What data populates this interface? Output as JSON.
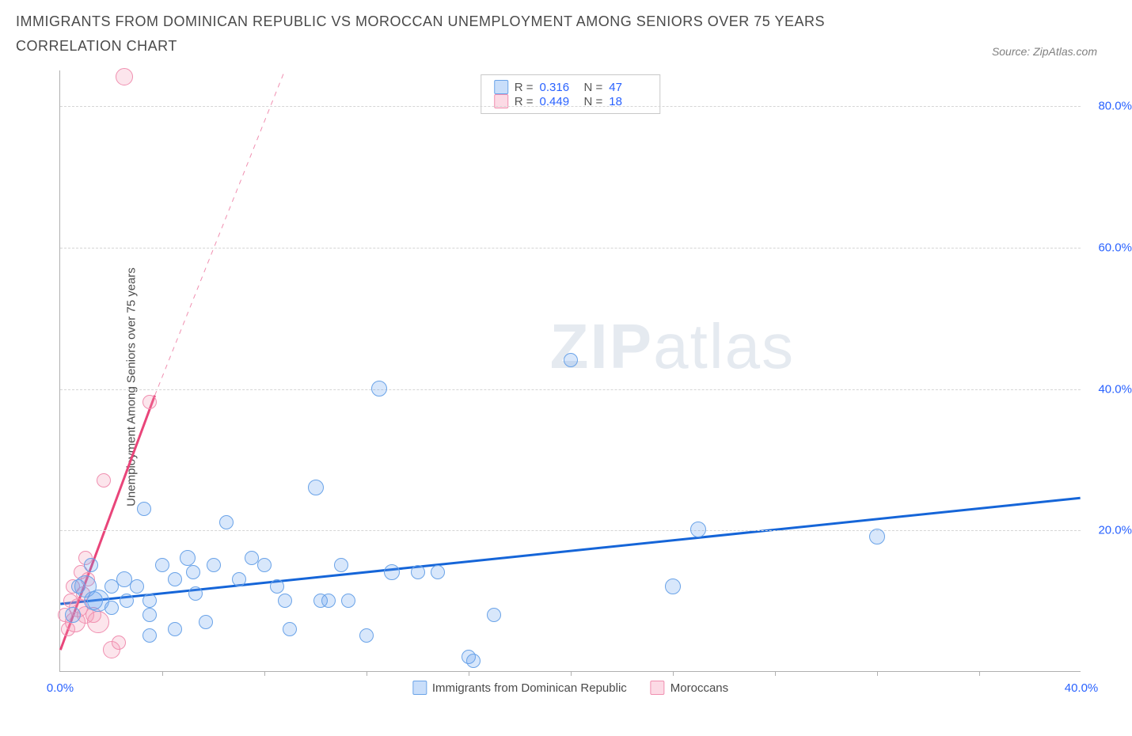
{
  "header": {
    "title": "IMMIGRANTS FROM DOMINICAN REPUBLIC VS MOROCCAN UNEMPLOYMENT AMONG SENIORS OVER 75 YEARS CORRELATION CHART",
    "source": "Source: ZipAtlas.com"
  },
  "axes": {
    "ylabel": "Unemployment Among Seniors over 75 years",
    "x_min": 0,
    "x_max": 40,
    "y_min": 0,
    "y_max": 85,
    "x_ticks": [
      0,
      40
    ],
    "x_tick_marks": [
      4,
      8,
      12,
      16,
      20,
      24,
      28,
      32,
      36
    ],
    "y_ticks": [
      20,
      40,
      60,
      80
    ],
    "x_tick_fmt": [
      "0.0%",
      "40.0%"
    ],
    "y_tick_fmt": [
      "20.0%",
      "40.0%",
      "60.0%",
      "80.0%"
    ]
  },
  "grid_color": "#d5d5d5",
  "series": {
    "blue": {
      "label": "Immigrants from Dominican Republic",
      "color_fill": "rgba(100,160,240,0.25)",
      "color_stroke": "#6aa3e8",
      "r_value": "0.316",
      "n_value": "47",
      "trend": {
        "x1": 0,
        "y1": 9.5,
        "x2": 40,
        "y2": 24.5,
        "color": "#1565d8",
        "width": 3
      },
      "points": [
        {
          "x": 0.5,
          "y": 8,
          "r": 10
        },
        {
          "x": 0.7,
          "y": 12,
          "r": 9
        },
        {
          "x": 1.0,
          "y": 12,
          "r": 14
        },
        {
          "x": 1.2,
          "y": 15,
          "r": 9
        },
        {
          "x": 1.3,
          "y": 10,
          "r": 12
        },
        {
          "x": 1.5,
          "y": 10,
          "r": 14
        },
        {
          "x": 2.0,
          "y": 12,
          "r": 9
        },
        {
          "x": 2.0,
          "y": 9,
          "r": 9
        },
        {
          "x": 2.5,
          "y": 13,
          "r": 10
        },
        {
          "x": 2.6,
          "y": 10,
          "r": 9
        },
        {
          "x": 3.0,
          "y": 12,
          "r": 9
        },
        {
          "x": 3.3,
          "y": 23,
          "r": 9
        },
        {
          "x": 3.5,
          "y": 10,
          "r": 9
        },
        {
          "x": 3.5,
          "y": 8,
          "r": 9
        },
        {
          "x": 3.5,
          "y": 5,
          "r": 9
        },
        {
          "x": 4,
          "y": 15,
          "r": 9
        },
        {
          "x": 4.5,
          "y": 13,
          "r": 9
        },
        {
          "x": 4.5,
          "y": 6,
          "r": 9
        },
        {
          "x": 5,
          "y": 16,
          "r": 10
        },
        {
          "x": 5.2,
          "y": 14,
          "r": 9
        },
        {
          "x": 5.3,
          "y": 11,
          "r": 9
        },
        {
          "x": 5.7,
          "y": 7,
          "r": 9
        },
        {
          "x": 6,
          "y": 15,
          "r": 9
        },
        {
          "x": 6.5,
          "y": 21,
          "r": 9
        },
        {
          "x": 7,
          "y": 13,
          "r": 9
        },
        {
          "x": 7.5,
          "y": 16,
          "r": 9
        },
        {
          "x": 8,
          "y": 15,
          "r": 9
        },
        {
          "x": 8.5,
          "y": 12,
          "r": 9
        },
        {
          "x": 8.8,
          "y": 10,
          "r": 9
        },
        {
          "x": 9,
          "y": 6,
          "r": 9
        },
        {
          "x": 10,
          "y": 26,
          "r": 10
        },
        {
          "x": 10.2,
          "y": 10,
          "r": 9
        },
        {
          "x": 10.5,
          "y": 10,
          "r": 9
        },
        {
          "x": 11,
          "y": 15,
          "r": 9
        },
        {
          "x": 11.3,
          "y": 10,
          "r": 9
        },
        {
          "x": 12,
          "y": 5,
          "r": 9
        },
        {
          "x": 12.5,
          "y": 40,
          "r": 10
        },
        {
          "x": 13,
          "y": 14,
          "r": 10
        },
        {
          "x": 14,
          "y": 14,
          "r": 9
        },
        {
          "x": 14.8,
          "y": 14,
          "r": 9
        },
        {
          "x": 16,
          "y": 2,
          "r": 9
        },
        {
          "x": 16.2,
          "y": 1.5,
          "r": 9
        },
        {
          "x": 17,
          "y": 8,
          "r": 9
        },
        {
          "x": 20,
          "y": 44,
          "r": 9
        },
        {
          "x": 24,
          "y": 12,
          "r": 10
        },
        {
          "x": 25,
          "y": 20,
          "r": 10
        },
        {
          "x": 32,
          "y": 19,
          "r": 10
        }
      ]
    },
    "pink": {
      "label": "Moroccans",
      "color_fill": "rgba(245,150,180,0.25)",
      "color_stroke": "#f08fb0",
      "r_value": "0.449",
      "n_value": "18",
      "trend_solid": {
        "x1": 0,
        "y1": 3,
        "x2": 3.7,
        "y2": 39,
        "color": "#e9457a",
        "width": 3
      },
      "trend_dash": {
        "x1": 3.7,
        "y1": 39,
        "x2": 8.8,
        "y2": 85,
        "color": "#f08fb0",
        "width": 1
      },
      "points": [
        {
          "x": 0.2,
          "y": 8,
          "r": 9
        },
        {
          "x": 0.3,
          "y": 6,
          "r": 9
        },
        {
          "x": 0.4,
          "y": 10,
          "r": 9
        },
        {
          "x": 0.5,
          "y": 12,
          "r": 9
        },
        {
          "x": 0.6,
          "y": 7,
          "r": 13
        },
        {
          "x": 0.7,
          "y": 9,
          "r": 12
        },
        {
          "x": 0.8,
          "y": 14,
          "r": 9
        },
        {
          "x": 0.9,
          "y": 11,
          "r": 9
        },
        {
          "x": 1.0,
          "y": 8,
          "r": 11
        },
        {
          "x": 1.0,
          "y": 16,
          "r": 9
        },
        {
          "x": 1.1,
          "y": 13,
          "r": 9
        },
        {
          "x": 1.3,
          "y": 8,
          "r": 10
        },
        {
          "x": 1.5,
          "y": 7,
          "r": 14
        },
        {
          "x": 1.7,
          "y": 27,
          "r": 9
        },
        {
          "x": 2,
          "y": 3,
          "r": 11
        },
        {
          "x": 2.3,
          "y": 4,
          "r": 9
        },
        {
          "x": 2.5,
          "y": 84,
          "r": 11
        },
        {
          "x": 3.5,
          "y": 38,
          "r": 9
        }
      ]
    }
  },
  "legend_bottom": {
    "series1": "Immigrants from Dominican Republic",
    "series2": "Moroccans"
  },
  "stats_box": {
    "r_label": "R =",
    "n_label": "N ="
  },
  "watermark": {
    "bold": "ZIP",
    "rest": "atlas"
  }
}
